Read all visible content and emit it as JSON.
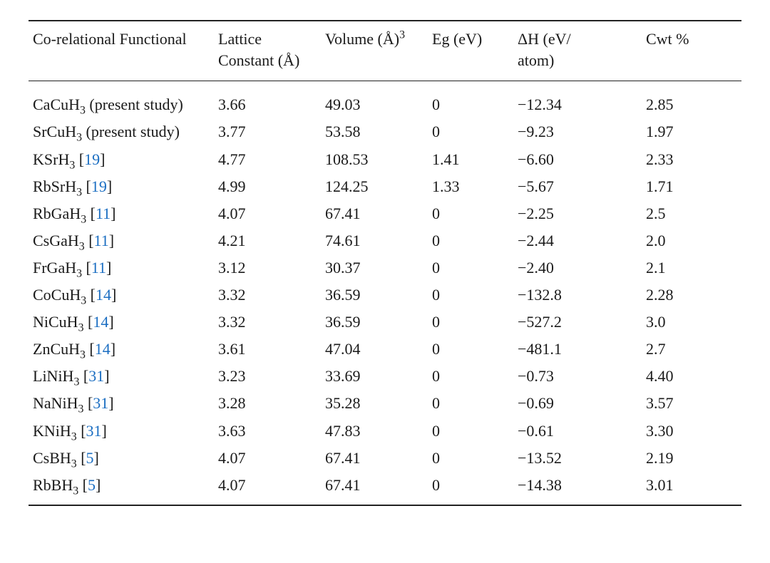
{
  "table": {
    "type": "table",
    "background_color": "#ffffff",
    "text_color": "#1a1a1a",
    "ref_link_color": "#1b6ec2",
    "rule_color": "#222222",
    "font_family": "Georgia, Times New Roman, serif",
    "header_fontsize_pt": 16,
    "body_fontsize_pt": 16,
    "column_widths_pct": [
      26,
      15,
      15,
      12,
      18,
      14
    ],
    "columns": [
      {
        "label_html": "Co-relational Functional",
        "align": "left"
      },
      {
        "label_html": "Lattice Constant (Å)",
        "align": "left"
      },
      {
        "label_html": "Volume (Å)<sup>3</sup>",
        "align": "left"
      },
      {
        "label_html": "Eg (eV)",
        "align": "left"
      },
      {
        "label_html": "ΔH (eV/<br>atom)",
        "align": "left"
      },
      {
        "label_html": "Cwt %",
        "align": "left"
      }
    ],
    "rows": [
      {
        "functional_html": "CaCuH<sub>3</sub> (present study)",
        "ref": null,
        "lattice": "3.66",
        "volume": "49.03",
        "eg": "0",
        "dH": "−12.34",
        "cwt": "2.85"
      },
      {
        "functional_html": "SrCuH<sub>3</sub> (present study)",
        "ref": null,
        "lattice": "3.77",
        "volume": "53.58",
        "eg": "0",
        "dH": "−9.23",
        "cwt": "1.97"
      },
      {
        "functional_html": "KSrH<sub>3</sub>",
        "ref": "19",
        "lattice": "4.77",
        "volume": "108.53",
        "eg": "1.41",
        "dH": "−6.60",
        "cwt": "2.33"
      },
      {
        "functional_html": "RbSrH<sub>3</sub>",
        "ref": "19",
        "lattice": "4.99",
        "volume": "124.25",
        "eg": "1.33",
        "dH": "−5.67",
        "cwt": "1.71"
      },
      {
        "functional_html": "RbGaH<sub>3</sub>",
        "ref": "11",
        "lattice": "4.07",
        "volume": "67.41",
        "eg": "0",
        "dH": "−2.25",
        "cwt": "2.5"
      },
      {
        "functional_html": "CsGaH<sub>3</sub>",
        "ref": "11",
        "lattice": "4.21",
        "volume": "74.61",
        "eg": "0",
        "dH": "−2.44",
        "cwt": "2.0"
      },
      {
        "functional_html": "FrGaH<sub>3</sub>",
        "ref": "11",
        "lattice": "3.12",
        "volume": "30.37",
        "eg": "0",
        "dH": "−2.40",
        "cwt": "2.1"
      },
      {
        "functional_html": "CoCuH<sub>3</sub>",
        "ref": "14",
        "lattice": "3.32",
        "volume": "36.59",
        "eg": "0",
        "dH": "−132.8",
        "cwt": "2.28"
      },
      {
        "functional_html": "NiCuH<sub>3</sub>",
        "ref": "14",
        "lattice": "3.32",
        "volume": "36.59",
        "eg": "0",
        "dH": "−527.2",
        "cwt": "3.0"
      },
      {
        "functional_html": "ZnCuH<sub>3</sub>",
        "ref": "14",
        "lattice": "3.61",
        "volume": "47.04",
        "eg": "0",
        "dH": "−481.1",
        "cwt": "2.7"
      },
      {
        "functional_html": "LiNiH<sub>3</sub>",
        "ref": "31",
        "lattice": "3.23",
        "volume": "33.69",
        "eg": "0",
        "dH": "−0.73",
        "cwt": "4.40"
      },
      {
        "functional_html": "NaNiH<sub>3</sub>",
        "ref": "31",
        "lattice": "3.28",
        "volume": "35.28",
        "eg": "0",
        "dH": "−0.69",
        "cwt": "3.57"
      },
      {
        "functional_html": "KNiH<sub>3</sub>",
        "ref": "31",
        "lattice": "3.63",
        "volume": "47.83",
        "eg": "0",
        "dH": "−0.61",
        "cwt": "3.30"
      },
      {
        "functional_html": "CsBH<sub>3</sub>",
        "ref": "5",
        "lattice": "4.07",
        "volume": "67.41",
        "eg": "0",
        "dH": "−13.52",
        "cwt": "2.19"
      },
      {
        "functional_html": "RbBH<sub>3</sub>",
        "ref": "5",
        "lattice": "4.07",
        "volume": "67.41",
        "eg": "0",
        "dH": "−14.38",
        "cwt": "3.01"
      }
    ]
  }
}
